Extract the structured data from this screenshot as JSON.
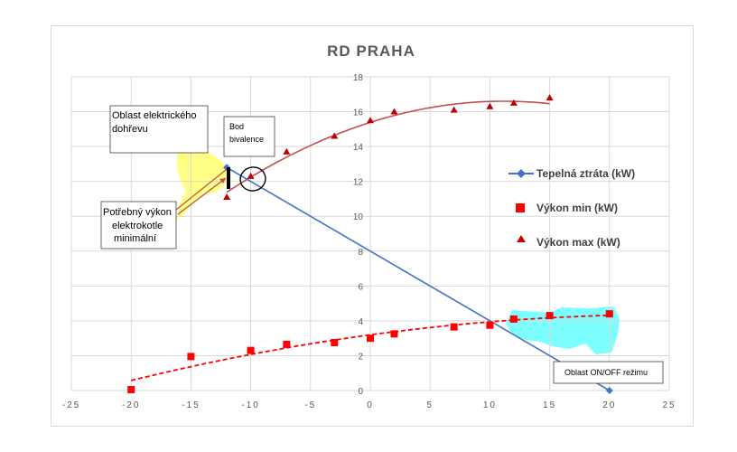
{
  "chart_data": {
    "type": "scatter",
    "title": "RD PRAHA",
    "xlim": [
      -25,
      25
    ],
    "ylim": [
      0,
      18
    ],
    "x_ticks": [
      "-25",
      "-20",
      "-15",
      "-10",
      "-5",
      "0",
      "5",
      "10",
      "15",
      "20",
      "25"
    ],
    "y_ticks": [
      "0",
      "2",
      "4",
      "6",
      "8",
      "10",
      "12",
      "14",
      "16",
      "18"
    ],
    "grid": "vertical and horizontal",
    "legend_position": "right",
    "series": [
      {
        "name": "Tepelná ztráta (kW)",
        "type": "line",
        "color": "#4472c4",
        "marker": "diamond",
        "x": [
          -12,
          20
        ],
        "y": [
          12.8,
          0
        ]
      },
      {
        "name": "Výkon min (kW)",
        "type": "scatter",
        "color": "#ff0000",
        "marker": "square",
        "trendline": "dashed",
        "x": [
          -20,
          -15,
          -10,
          -7,
          -3,
          0,
          2,
          7,
          10,
          12,
          15,
          20
        ],
        "y": [
          0.05,
          1.95,
          2.3,
          2.65,
          2.75,
          3.0,
          3.25,
          3.65,
          3.75,
          4.1,
          4.3,
          4.4
        ]
      },
      {
        "name": "Výkon max (kW)",
        "type": "scatter",
        "color": "#c00000",
        "marker": "triangle",
        "trendline": "solid",
        "x": [
          -12,
          -10,
          -7,
          -3,
          0,
          2,
          7,
          10,
          12,
          15
        ],
        "y": [
          11.1,
          12.3,
          13.7,
          14.6,
          15.5,
          16.0,
          16.1,
          16.3,
          16.5,
          16.8
        ]
      }
    ],
    "annotations": [
      {
        "name": "oblast-elektrickeho-dohrevu",
        "lines": [
          "Oblast elektrického",
          "dohřevu"
        ]
      },
      {
        "name": "bod-bivalence",
        "lines": [
          "Bod",
          "bivalence"
        ]
      },
      {
        "name": "potrebny-vykon",
        "lines": [
          "Potřebný výkon",
          "elektrokotle",
          "minimální"
        ]
      },
      {
        "name": "oblast-on-off",
        "lines": [
          "Oblast ON/OFF režimu"
        ]
      }
    ],
    "colors": {
      "highlight_yellow": "#ffff66",
      "highlight_cyan": "#66ffff",
      "grid": "#d9d9d9",
      "arrow": "#c0504d"
    }
  }
}
